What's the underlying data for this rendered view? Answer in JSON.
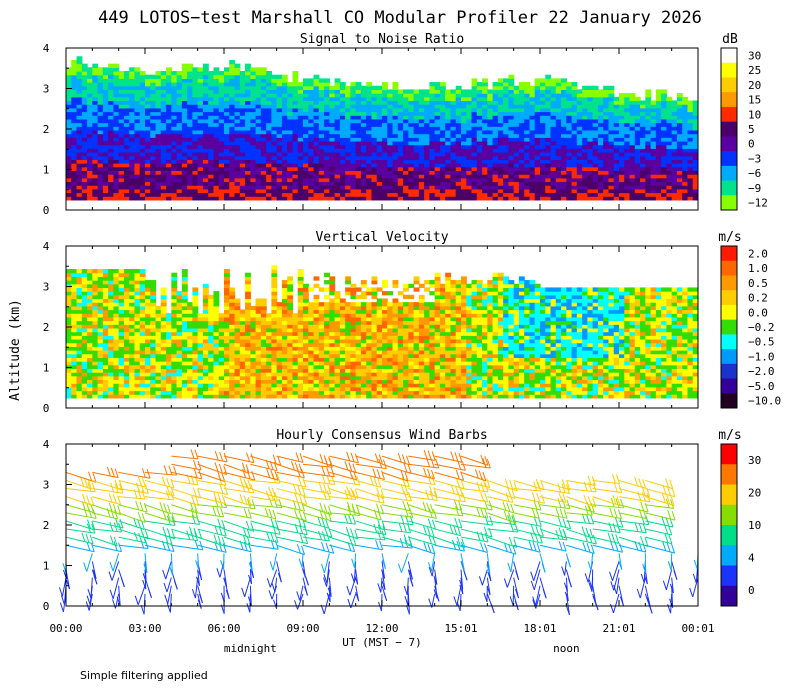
{
  "title": "449 LOTOS−test Marshall CO Modular Profiler 22 January 2026",
  "ylabel": "Altitude (km)",
  "xlabel": "UT  (MST − 7)",
  "x_ticks": [
    "00:00",
    "03:00",
    "06:00",
    "09:00",
    "12:00",
    "15:01",
    "18:01",
    "21:01",
    "00:01"
  ],
  "x_marks": [
    {
      "label": "midnight",
      "hour": 7
    },
    {
      "label": "noon",
      "hour": 19
    }
  ],
  "footnote": "Simple filtering applied",
  "chart_data": [
    {
      "type": "heatmap",
      "title": "Signal to Noise Ratio",
      "unit": "dB",
      "xlabel": "UT (MST − 7)",
      "ylabel": "Altitude (km)",
      "xlim": [
        0,
        24
      ],
      "ylim": [
        0,
        4
      ],
      "y_ticks": [
        "0",
        "1",
        "2",
        "3",
        "4"
      ],
      "colorbar_labels": [
        "30",
        "25",
        "20",
        "15",
        "10",
        "5",
        "0",
        "−3",
        "−6",
        "−9",
        "−12"
      ],
      "colorbar_colors": [
        "#ffffff",
        "#ffff00",
        "#ffcc00",
        "#ff9900",
        "#ff2a00",
        "#4b0069",
        "#5a00a0",
        "#0033ff",
        "#00aaff",
        "#00e38c",
        "#88ff00"
      ],
      "top_altitude_km_by_hour": [
        [
          0,
          3.6
        ],
        [
          3,
          3.4
        ],
        [
          6,
          3.5
        ],
        [
          9,
          3.2
        ],
        [
          12,
          3.0
        ],
        [
          15,
          3.0
        ],
        [
          18,
          3.2
        ],
        [
          21,
          2.9
        ],
        [
          24,
          2.7
        ]
      ]
    },
    {
      "type": "heatmap",
      "title": "Vertical Velocity",
      "unit": "m/s",
      "xlabel": "UT (MST − 7)",
      "ylabel": "Altitude (km)",
      "xlim": [
        0,
        24
      ],
      "ylim": [
        0,
        4
      ],
      "y_ticks": [
        "0",
        "1",
        "2",
        "3",
        "4"
      ],
      "colorbar_labels": [
        "2.0",
        "1.0",
        "0.5",
        "0.2",
        "0.0",
        "−0.2",
        "−0.5",
        "−1.0",
        "−2.0",
        "−5.0",
        "−10.0"
      ],
      "colorbar_colors": [
        "#ff1a00",
        "#ff6600",
        "#ff9900",
        "#ffcc00",
        "#ffff00",
        "#33dd00",
        "#00ffff",
        "#0099ff",
        "#1a33cc",
        "#330099",
        "#220022"
      ]
    },
    {
      "type": "wind_barbs",
      "title": "Hourly Consensus Wind Barbs",
      "unit": "m/s",
      "xlabel": "UT (MST − 7)",
      "ylabel": "Altitude (km)",
      "xlim": [
        0,
        24
      ],
      "ylim": [
        0,
        4
      ],
      "y_ticks": [
        "0",
        "1",
        "2",
        "3",
        "4"
      ],
      "colorbar_labels": [
        "30",
        "20",
        "10",
        "4",
        "0"
      ],
      "colorbar_colors": [
        "#ff0000",
        "#ff7700",
        "#ffcc00",
        "#88dd00",
        "#00dd88",
        "#00aaff",
        "#1a33ff",
        "#330099"
      ]
    }
  ]
}
